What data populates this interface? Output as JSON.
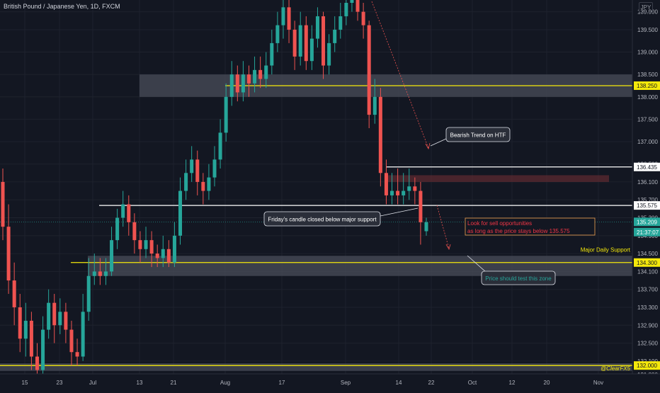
{
  "header": {
    "title": "British Pound / Japanese Yen, 1D, FXCM",
    "currency": "JPY"
  },
  "chart_data": {
    "type": "candlestick",
    "symbol": "British Pound / Japanese Yen",
    "timeframe": "1D",
    "source": "FXCM",
    "y_axis": {
      "ticks": [
        139.9,
        139.5,
        139.0,
        138.5,
        138.0,
        137.5,
        137.0,
        136.5,
        136.1,
        135.7,
        135.3,
        134.9,
        134.5,
        134.1,
        133.7,
        133.3,
        132.9,
        132.5,
        132.1,
        131.8
      ],
      "ylim": [
        131.75,
        140.1
      ]
    },
    "x_axis": {
      "tick_labels": [
        "15",
        "23",
        "Jul",
        "13",
        "21",
        "Aug",
        "17",
        "Sep",
        "14",
        "22",
        "Oct",
        "12",
        "20",
        "Nov"
      ]
    },
    "price_badges": [
      {
        "label": "138.250",
        "value": 138.25,
        "style": "yellow"
      },
      {
        "label": "136.435",
        "value": 136.435,
        "style": "white"
      },
      {
        "label": "135.575",
        "value": 135.575,
        "style": "white"
      },
      {
        "label": "135.209",
        "value": 135.209,
        "style": "teal"
      },
      {
        "label": "21:37:07",
        "value": 134.98,
        "style": "teal"
      },
      {
        "label": "134.300",
        "value": 134.3,
        "style": "yellow"
      },
      {
        "label": "132.000",
        "value": 132.0,
        "style": "yellow"
      }
    ],
    "levels": [
      {
        "value": 138.25,
        "color": "#f5e90b"
      },
      {
        "value": 136.435,
        "color": "#ffffff"
      },
      {
        "value": 135.575,
        "color": "#ffffff"
      },
      {
        "value": 134.3,
        "color": "#f5e90b"
      },
      {
        "value": 132.0,
        "color": "#f5e90b"
      }
    ],
    "zones": [
      {
        "from": 138.0,
        "to": 138.5,
        "color": "#4a4e5a"
      },
      {
        "from": 134.0,
        "to": 134.45,
        "color": "#4a4e5a"
      },
      {
        "from": 131.88,
        "to": 132.05,
        "color": "#4a4e5a"
      },
      {
        "from": 136.1,
        "to": 136.25,
        "color": "#5c2a30"
      }
    ],
    "last_price": 135.209,
    "annotations": [
      {
        "text": "Bearish Trend on HTF"
      },
      {
        "text": "Friday's candle closed below major support"
      },
      {
        "text": "Look for sell opportunities"
      },
      {
        "text": "as long as the price stays below 135.575"
      },
      {
        "text": "Major Daily Support"
      },
      {
        "text": "Price should test this zone"
      },
      {
        "text": "@ClearFX5"
      }
    ],
    "candles": [
      [
        136.1,
        135.1,
        136.4,
        134.8
      ],
      [
        135.1,
        133.9,
        135.6,
        133.6
      ],
      [
        133.9,
        133.3,
        134.3,
        132.9
      ],
      [
        133.3,
        132.6,
        133.6,
        132.3
      ],
      [
        132.6,
        133.0,
        133.4,
        132.2
      ],
      [
        133.0,
        132.2,
        133.2,
        131.9
      ],
      [
        132.2,
        131.9,
        132.5,
        131.7
      ],
      [
        131.9,
        132.8,
        133.1,
        131.8
      ],
      [
        132.8,
        133.4,
        133.7,
        132.6
      ],
      [
        133.4,
        132.9,
        133.6,
        132.5
      ],
      [
        132.9,
        133.2,
        133.5,
        132.7
      ],
      [
        133.2,
        132.8,
        133.4,
        132.5
      ],
      [
        132.8,
        132.3,
        133.0,
        132.0
      ],
      [
        132.3,
        132.2,
        132.6,
        132.0
      ],
      [
        132.2,
        133.2,
        133.6,
        132.1
      ],
      [
        133.2,
        134.0,
        134.4,
        133.0
      ],
      [
        134.0,
        134.1,
        134.5,
        133.8
      ],
      [
        134.1,
        134.0,
        134.4,
        133.8
      ],
      [
        134.0,
        134.1,
        134.4,
        133.8
      ],
      [
        134.1,
        134.8,
        135.1,
        134.0
      ],
      [
        134.8,
        135.3,
        135.5,
        134.6
      ],
      [
        135.3,
        135.6,
        135.9,
        135.1
      ],
      [
        135.6,
        135.2,
        135.8,
        134.9
      ],
      [
        135.2,
        134.8,
        135.4,
        134.5
      ],
      [
        134.8,
        134.6,
        135.0,
        134.3
      ],
      [
        134.6,
        134.8,
        135.1,
        134.4
      ],
      [
        134.8,
        134.5,
        135.0,
        134.2
      ],
      [
        134.5,
        134.4,
        134.7,
        134.2
      ],
      [
        134.4,
        134.6,
        134.9,
        134.2
      ],
      [
        134.6,
        134.3,
        134.8,
        134.2
      ],
      [
        134.3,
        134.9,
        135.2,
        134.2
      ],
      [
        134.9,
        135.9,
        136.2,
        134.7
      ],
      [
        135.9,
        136.3,
        136.6,
        135.7
      ],
      [
        136.3,
        136.6,
        136.9,
        136.1
      ],
      [
        136.6,
        136.1,
        136.8,
        135.8
      ],
      [
        136.1,
        135.9,
        136.3,
        135.6
      ],
      [
        135.9,
        136.2,
        136.5,
        135.7
      ],
      [
        136.2,
        136.6,
        136.9,
        136.0
      ],
      [
        136.6,
        137.2,
        137.5,
        136.4
      ],
      [
        137.2,
        138.0,
        138.3,
        137.0
      ],
      [
        138.0,
        138.5,
        138.8,
        137.8
      ],
      [
        138.5,
        138.1,
        138.7,
        137.9
      ],
      [
        138.1,
        138.5,
        138.8,
        137.9
      ],
      [
        138.5,
        138.3,
        138.7,
        138.0
      ],
      [
        138.3,
        138.6,
        138.9,
        138.1
      ],
      [
        138.6,
        138.4,
        138.9,
        138.2
      ],
      [
        138.4,
        138.7,
        139.0,
        138.2
      ],
      [
        138.7,
        139.2,
        139.5,
        138.5
      ],
      [
        139.2,
        139.6,
        139.9,
        139.0
      ],
      [
        139.6,
        140.0,
        140.2,
        139.3
      ],
      [
        140.0,
        139.5,
        140.2,
        139.2
      ],
      [
        139.5,
        138.9,
        139.7,
        138.6
      ],
      [
        138.9,
        139.6,
        139.9,
        138.7
      ],
      [
        139.6,
        138.8,
        139.8,
        138.6
      ],
      [
        138.8,
        139.3,
        139.6,
        138.6
      ],
      [
        139.3,
        139.8,
        140.0,
        139.1
      ],
      [
        139.8,
        138.7,
        139.9,
        138.4
      ],
      [
        138.7,
        139.2,
        139.4,
        138.5
      ],
      [
        139.2,
        139.5,
        139.8,
        139.0
      ],
      [
        139.5,
        139.8,
        140.1,
        139.3
      ],
      [
        139.8,
        140.1,
        140.3,
        139.6
      ],
      [
        140.1,
        140.5,
        140.7,
        139.9
      ],
      [
        140.5,
        139.9,
        140.6,
        139.7
      ],
      [
        139.9,
        139.6,
        140.1,
        139.3
      ],
      [
        139.6,
        137.6,
        139.7,
        137.3
      ],
      [
        137.6,
        138.0,
        138.4,
        137.4
      ],
      [
        138.0,
        136.3,
        138.2,
        136.0
      ],
      [
        136.3,
        135.8,
        136.6,
        135.6
      ],
      [
        135.8,
        135.9,
        136.3,
        135.6
      ],
      [
        135.9,
        135.8,
        136.4,
        135.6
      ],
      [
        135.8,
        135.9,
        136.3,
        135.6
      ],
      [
        135.9,
        136.0,
        136.4,
        135.7
      ],
      [
        136.0,
        135.9,
        136.2,
        135.6
      ],
      [
        135.9,
        135.2,
        136.1,
        134.7
      ],
      [
        135.0,
        135.2,
        135.3,
        134.9
      ]
    ]
  }
}
